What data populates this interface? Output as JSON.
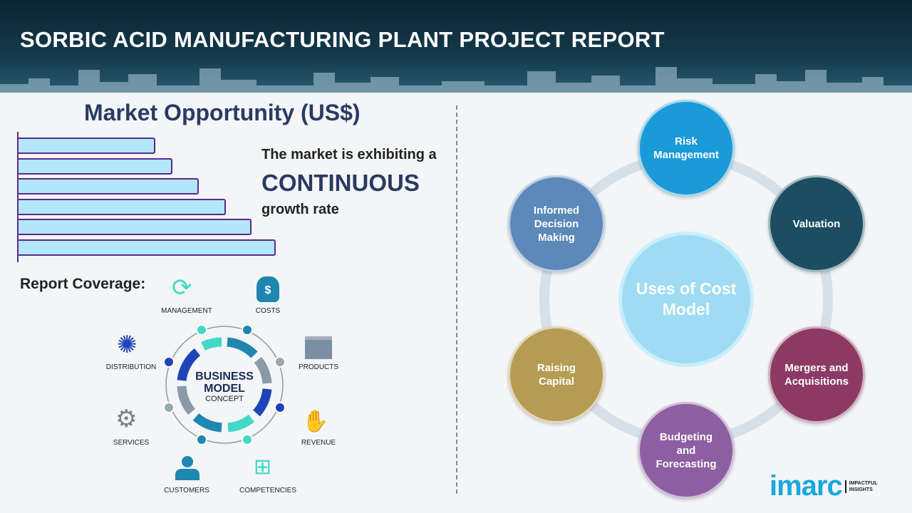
{
  "header": {
    "title": "SORBIC ACID MANUFACTURING PLANT PROJECT REPORT"
  },
  "market": {
    "title": "Market Opportunity (US$)",
    "bar_levels": [
      1,
      2,
      3,
      4,
      5,
      6
    ],
    "growth_line1": "The market is exhibiting a",
    "growth_highlight": "CONTINUOUS",
    "growth_line2": "growth rate"
  },
  "coverage": {
    "title": "Report Coverage:",
    "center_line1": "BUSINESS",
    "center_line2": "MODEL",
    "center_line3": "CONCEPT",
    "items": [
      "MANAGEMENT",
      "COSTS",
      "PRODUCTS",
      "REVENUE",
      "COMPETENCIES",
      "CUSTOMERS",
      "SERVICES",
      "DISTRIBUTION"
    ]
  },
  "uses": {
    "center": "Uses of Cost Model",
    "nodes": [
      {
        "label": "Risk Management",
        "color": "#1b9ad8"
      },
      {
        "label": "Valuation",
        "color": "#1b4e62"
      },
      {
        "label": "Mergers and Acquisitions",
        "color": "#8c3a63"
      },
      {
        "label": "Budgeting and Forecasting",
        "color": "#8e5ea2"
      },
      {
        "label": "Raising Capital",
        "color": "#b59c52"
      },
      {
        "label": "Informed Decision Making",
        "color": "#5c88ba"
      }
    ]
  },
  "logo": {
    "name": "imarc",
    "tagline": "IMPACTFUL INSIGHTS"
  }
}
